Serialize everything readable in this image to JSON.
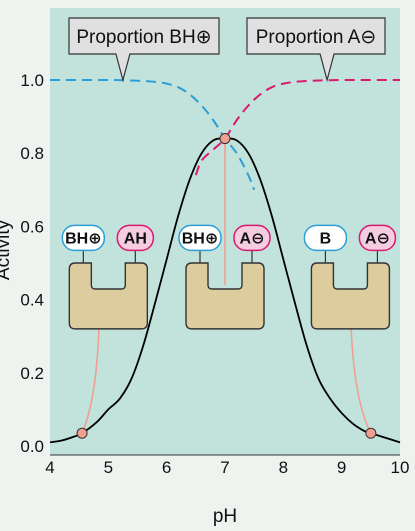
{
  "chart_data": {
    "type": "line",
    "title": "",
    "xlabel": "pH",
    "ylabel": "Activity",
    "xlim": [
      4,
      10
    ],
    "ylim": [
      0.0,
      1.0
    ],
    "xticks": [
      "4",
      "5",
      "6",
      "7",
      "8",
      "9",
      "10"
    ],
    "yticks": [
      "0.0",
      "0.2",
      "0.4",
      "0.6",
      "0.8",
      "1.0"
    ],
    "series": [
      {
        "name": "",
        "style": "solid",
        "color": "#000000",
        "x": [
          4.0,
          4.2,
          4.4,
          4.55,
          4.8,
          5.0,
          5.2,
          5.4,
          5.6,
          5.8,
          6.0,
          6.2,
          6.4,
          6.6,
          6.8,
          7.0,
          7.2,
          7.4,
          7.6,
          7.8,
          8.0,
          8.2,
          8.4,
          8.6,
          8.8,
          9.0,
          9.2,
          9.4,
          9.5,
          9.7,
          10.0
        ],
        "y": [
          0.01,
          0.015,
          0.025,
          0.035,
          0.065,
          0.1,
          0.13,
          0.185,
          0.275,
          0.39,
          0.51,
          0.63,
          0.73,
          0.8,
          0.835,
          0.84,
          0.835,
          0.8,
          0.73,
          0.63,
          0.51,
          0.39,
          0.275,
          0.185,
          0.13,
          0.09,
          0.06,
          0.04,
          0.035,
          0.025,
          0.01
        ]
      },
      {
        "name": "Proportion BH⊕",
        "style": "dashed",
        "color": "#2a9fd8",
        "x": [
          4.0,
          5.0,
          5.5,
          5.8,
          6.0,
          6.2,
          6.4,
          6.6,
          6.8,
          7.0,
          7.2,
          7.4,
          7.5
        ],
        "y": [
          1.0,
          1.0,
          0.998,
          0.995,
          0.99,
          0.98,
          0.96,
          0.93,
          0.89,
          0.84,
          0.8,
          0.74,
          0.7
        ]
      },
      {
        "name": "Proportion A⊖",
        "style": "dashed",
        "color": "#d81b6e",
        "x": [
          6.5,
          6.6,
          6.8,
          7.0,
          7.2,
          7.4,
          7.6,
          7.8,
          8.0,
          8.2,
          8.5,
          9.0,
          10.0
        ],
        "y": [
          0.74,
          0.78,
          0.81,
          0.84,
          0.89,
          0.93,
          0.96,
          0.98,
          0.99,
          0.995,
          0.998,
          1.0,
          1.0
        ]
      }
    ],
    "markers": [
      {
        "x": 4.55,
        "y": 0.035
      },
      {
        "x": 7.0,
        "y": 0.84
      },
      {
        "x": 9.5,
        "y": 0.035
      }
    ],
    "grid": false,
    "legend": "none"
  },
  "callouts": [
    {
      "label": "Proportion BH⊕"
    },
    {
      "label": "Proportion A⊖"
    }
  ],
  "enzymes": [
    {
      "left_chip": "BH⊕",
      "right_chip": "AH",
      "left_kind": "base",
      "right_kind": "acid"
    },
    {
      "left_chip": "BH⊕",
      "right_chip": "A⊖",
      "left_kind": "base",
      "right_kind": "acid"
    },
    {
      "left_chip": "B",
      "right_chip": "A⊖",
      "left_kind": "base",
      "right_kind": "acid"
    }
  ],
  "colors": {
    "plot_bg": "#c2e2dc",
    "page_bg": "#eef3f0",
    "enzyme_fill": "#ddcd9e",
    "base_chip_border": "#2a9fd8",
    "acid_chip_border": "#d81b6e",
    "acid_chip_fill": "#f4cde0",
    "marker_fill": "#f0a090",
    "stem": "#f0a090"
  }
}
